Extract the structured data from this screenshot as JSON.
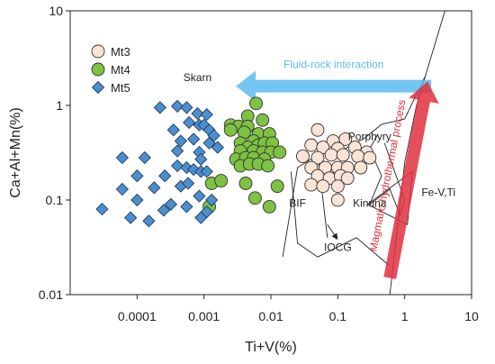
{
  "chart_data": {
    "type": "scatter",
    "title": "",
    "xlabel": "Ti+V(%)",
    "ylabel": "Ca+Al+Mn(%)",
    "x_scale": "log",
    "y_scale": "log",
    "xlim": [
      1e-05,
      10
    ],
    "ylim": [
      0.01,
      10
    ],
    "grid": false,
    "legend_position": "top-left",
    "x_tick_labels": [
      "0.0001",
      "0.001",
      "0.01",
      "0.1",
      "1",
      "10"
    ],
    "y_tick_labels": [
      "0.01",
      "0.1",
      "1",
      "10"
    ],
    "series": [
      {
        "name": "Mt3",
        "marker": "circle",
        "color": "#fbe3d6",
        "points": [
          {
            "x": 0.05,
            "y": 0.55
          },
          {
            "x": 0.085,
            "y": 0.42
          },
          {
            "x": 0.13,
            "y": 0.44
          },
          {
            "x": 0.04,
            "y": 0.38
          },
          {
            "x": 0.06,
            "y": 0.36
          },
          {
            "x": 0.1,
            "y": 0.35
          },
          {
            "x": 0.18,
            "y": 0.36
          },
          {
            "x": 0.27,
            "y": 0.32
          },
          {
            "x": 0.03,
            "y": 0.29
          },
          {
            "x": 0.05,
            "y": 0.28
          },
          {
            "x": 0.08,
            "y": 0.3
          },
          {
            "x": 0.12,
            "y": 0.3
          },
          {
            "x": 0.2,
            "y": 0.29
          },
          {
            "x": 0.3,
            "y": 0.28
          },
          {
            "x": 0.04,
            "y": 0.22
          },
          {
            "x": 0.065,
            "y": 0.22
          },
          {
            "x": 0.1,
            "y": 0.22
          },
          {
            "x": 0.14,
            "y": 0.22
          },
          {
            "x": 0.22,
            "y": 0.22
          },
          {
            "x": 0.05,
            "y": 0.18
          },
          {
            "x": 0.075,
            "y": 0.17
          },
          {
            "x": 0.11,
            "y": 0.18
          },
          {
            "x": 0.14,
            "y": 0.17
          },
          {
            "x": 0.04,
            "y": 0.145
          },
          {
            "x": 0.06,
            "y": 0.14
          },
          {
            "x": 0.1,
            "y": 0.14
          },
          {
            "x": 0.1,
            "y": 0.1
          }
        ]
      },
      {
        "name": "Mt4",
        "marker": "circle",
        "color": "#7dc242",
        "points": [
          {
            "x": 0.006,
            "y": 1.05
          },
          {
            "x": 0.0045,
            "y": 0.77
          },
          {
            "x": 0.0075,
            "y": 0.7
          },
          {
            "x": 0.0025,
            "y": 0.62
          },
          {
            "x": 0.0033,
            "y": 0.6
          },
          {
            "x": 0.0045,
            "y": 0.6
          },
          {
            "x": 0.0025,
            "y": 0.55
          },
          {
            "x": 0.004,
            "y": 0.52
          },
          {
            "x": 0.0065,
            "y": 0.5
          },
          {
            "x": 0.0095,
            "y": 0.5
          },
          {
            "x": 0.0055,
            "y": 0.42
          },
          {
            "x": 0.0035,
            "y": 0.4
          },
          {
            "x": 0.0045,
            "y": 0.36
          },
          {
            "x": 0.0065,
            "y": 0.38
          },
          {
            "x": 0.008,
            "y": 0.4
          },
          {
            "x": 0.0105,
            "y": 0.4
          },
          {
            "x": 0.0035,
            "y": 0.33
          },
          {
            "x": 0.0055,
            "y": 0.33
          },
          {
            "x": 0.0075,
            "y": 0.32
          },
          {
            "x": 0.01,
            "y": 0.32
          },
          {
            "x": 0.0135,
            "y": 0.32
          },
          {
            "x": 0.003,
            "y": 0.27
          },
          {
            "x": 0.0042,
            "y": 0.28
          },
          {
            "x": 0.0055,
            "y": 0.28
          },
          {
            "x": 0.008,
            "y": 0.27
          },
          {
            "x": 0.0035,
            "y": 0.23
          },
          {
            "x": 0.0048,
            "y": 0.24
          },
          {
            "x": 0.0065,
            "y": 0.24
          },
          {
            "x": 0.009,
            "y": 0.23
          },
          {
            "x": 0.0013,
            "y": 0.15
          },
          {
            "x": 0.0018,
            "y": 0.16
          },
          {
            "x": 0.0042,
            "y": 0.15
          },
          {
            "x": 0.0125,
            "y": 0.14
          },
          {
            "x": 0.0058,
            "y": 0.105
          },
          {
            "x": 0.0095,
            "y": 0.085
          },
          {
            "x": 0.0012,
            "y": 0.085
          }
        ]
      },
      {
        "name": "Mt5",
        "marker": "diamond",
        "color": "#4d8fcc",
        "points": [
          {
            "x": 0.0004,
            "y": 0.98
          },
          {
            "x": 0.00055,
            "y": 0.95
          },
          {
            "x": 0.00022,
            "y": 0.95
          },
          {
            "x": 0.0008,
            "y": 0.82
          },
          {
            "x": 0.0011,
            "y": 0.8
          },
          {
            "x": 0.0006,
            "y": 0.66
          },
          {
            "x": 0.00085,
            "y": 0.62
          },
          {
            "x": 0.001,
            "y": 0.62
          },
          {
            "x": 0.00035,
            "y": 0.55
          },
          {
            "x": 0.0012,
            "y": 0.55
          },
          {
            "x": 0.0014,
            "y": 0.48
          },
          {
            "x": 0.00045,
            "y": 0.42
          },
          {
            "x": 0.0007,
            "y": 0.44
          },
          {
            "x": 0.0012,
            "y": 0.4
          },
          {
            "x": 0.0016,
            "y": 0.36
          },
          {
            "x": 0.0004,
            "y": 0.33
          },
          {
            "x": 0.00085,
            "y": 0.32
          },
          {
            "x": 6e-05,
            "y": 0.28
          },
          {
            "x": 0.00013,
            "y": 0.28
          },
          {
            "x": 0.0009,
            "y": 0.27
          },
          {
            "x": 0.0004,
            "y": 0.23
          },
          {
            "x": 0.00055,
            "y": 0.22
          },
          {
            "x": 0.0007,
            "y": 0.21
          },
          {
            "x": 0.0009,
            "y": 0.2
          },
          {
            "x": 0.0011,
            "y": 0.2
          },
          {
            "x": 0.0001,
            "y": 0.18
          },
          {
            "x": 0.00026,
            "y": 0.18
          },
          {
            "x": 0.00045,
            "y": 0.14
          },
          {
            "x": 0.00018,
            "y": 0.135
          },
          {
            "x": 0.00058,
            "y": 0.15
          },
          {
            "x": 6e-05,
            "y": 0.13
          },
          {
            "x": 0.00085,
            "y": 0.11
          },
          {
            "x": 0.0001,
            "y": 0.1
          },
          {
            "x": 0.0013,
            "y": 0.1
          },
          {
            "x": 0.00032,
            "y": 0.09
          },
          {
            "x": 0.00055,
            "y": 0.085
          },
          {
            "x": 0.0011,
            "y": 0.075
          },
          {
            "x": 0.00025,
            "y": 0.078
          },
          {
            "x": 3e-05,
            "y": 0.08
          },
          {
            "x": 8e-05,
            "y": 0.065
          },
          {
            "x": 0.0009,
            "y": 0.065
          },
          {
            "x": 0.00015,
            "y": 0.06
          }
        ]
      }
    ],
    "field_labels": [
      {
        "text": "Skarn",
        "x": 0.0008,
        "y": 1.8
      },
      {
        "text": "Porphyry",
        "x": 0.3,
        "y": 0.43
      },
      {
        "text": "Fe-V,Ti",
        "x": 3.2,
        "y": 0.11
      },
      {
        "text": "Kinuna",
        "x": 0.3,
        "y": 0.085
      },
      {
        "text": "BIF",
        "x": 0.025,
        "y": 0.085
      },
      {
        "text": "IOCG",
        "x": 0.1,
        "y": 0.029
      }
    ],
    "field_boundaries": [
      {
        "points": [
          [
            0.015,
            0.025
          ],
          [
            0.025,
            0.22
          ],
          [
            0.05,
            0.3
          ],
          [
            0.13,
            0.35
          ],
          [
            0.25,
            0.45
          ],
          [
            0.45,
            0.63
          ],
          [
            1.0,
            0.72
          ],
          [
            2.0,
            2.0
          ]
        ]
      },
      {
        "points": [
          [
            0.02,
            0.2
          ],
          [
            0.025,
            0.035
          ],
          [
            0.05,
            0.025
          ],
          [
            0.19,
            0.04
          ],
          [
            0.6,
            0.02
          ]
        ]
      },
      {
        "points": [
          [
            0.05,
            0.3
          ],
          [
            0.07,
            0.04
          ]
        ]
      },
      {
        "points": [
          [
            0.28,
            0.09
          ],
          [
            1.1,
            0.055
          ],
          [
            1.3,
            0.2
          ],
          [
            0.28,
            0.09
          ]
        ]
      },
      {
        "points": [
          [
            0.4,
            0.5
          ],
          [
            0.3,
            0.35
          ],
          [
            0.45,
            0.18
          ],
          [
            0.3,
            0.09
          ],
          [
            0.6,
            0.13
          ],
          [
            0.85,
            0.07
          ],
          [
            1.0,
            0.1
          ],
          [
            0.5,
            0.4
          ]
        ]
      },
      {
        "points": [
          [
            0.6,
            0.01
          ],
          [
            1.0,
            0.25
          ],
          [
            1.5,
            1.0
          ],
          [
            4.0,
            10
          ]
        ]
      }
    ],
    "annotations": [
      {
        "text": "Fluid-rock interaction",
        "color": "#5bbcf0",
        "from": [
          2.5,
          1.6
        ],
        "to": [
          0.003,
          1.6
        ]
      },
      {
        "text": "Magmatic-hydrothermal process",
        "color": "#e03040",
        "from": [
          0.6,
          0.015
        ],
        "to": [
          2.2,
          1.8
        ]
      },
      {
        "text": "",
        "color": "#222222",
        "from": [
          0.07,
          0.055
        ],
        "to": [
          0.1,
          0.038
        ]
      }
    ]
  }
}
